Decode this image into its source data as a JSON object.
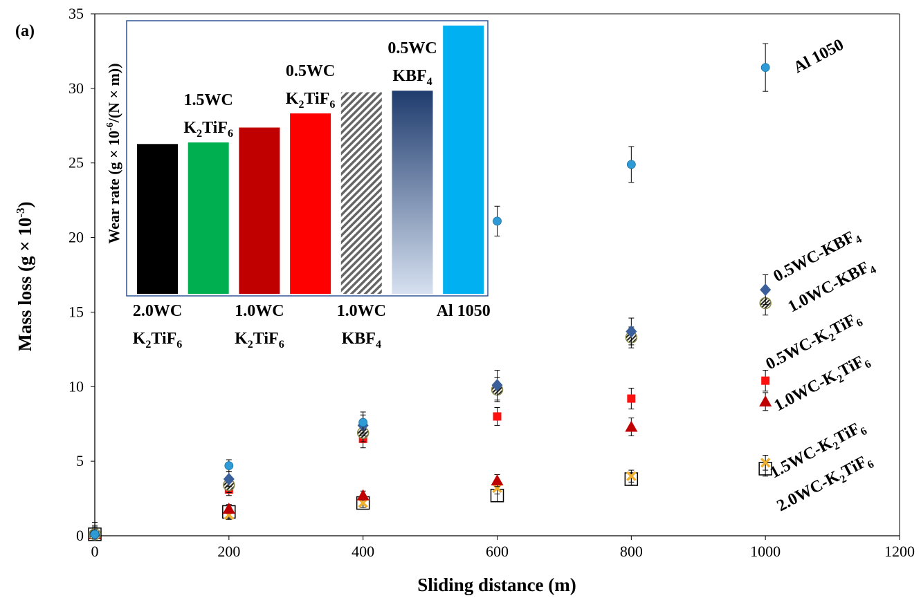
{
  "panel_label": "(a)",
  "chart_data": [
    {
      "type": "scatter",
      "xlabel": "Sliding distance (m)",
      "ylabel": "Mass loss (g × 10",
      "ylabel_sup": "-3",
      "ylabel_end": ")",
      "xlim": [
        0,
        1200
      ],
      "ylim": [
        0,
        35
      ],
      "xticks": [
        0,
        200,
        400,
        600,
        800,
        1000,
        1200
      ],
      "yticks": [
        0,
        5,
        10,
        15,
        20,
        25,
        30,
        35
      ],
      "grid": false,
      "series": [
        {
          "name": "Al 1050",
          "marker": "circle",
          "color": "#2e9bd6",
          "x": [
            0,
            200,
            400,
            600,
            800,
            1000
          ],
          "y": [
            0.1,
            4.7,
            7.6,
            21.1,
            24.9,
            31.4
          ],
          "err": [
            0.8,
            0.4,
            0.7,
            1.0,
            1.2,
            1.6
          ]
        },
        {
          "name": "0.5WC-KBF",
          "name_sub": "4",
          "marker": "diamond",
          "color": "#3a5f9a",
          "x": [
            0,
            200,
            400,
            600,
            800,
            1000
          ],
          "y": [
            0.1,
            3.8,
            7.4,
            10.1,
            13.7,
            16.5
          ],
          "err": [
            0.6,
            0.5,
            0.7,
            1.0,
            0.9,
            1.0
          ]
        },
        {
          "name": "1.0WC-KBF",
          "name_sub": "4",
          "marker": "hatched-circle",
          "color": "#555555",
          "x": [
            0,
            200,
            400,
            600,
            800,
            1000
          ],
          "y": [
            0.1,
            3.4,
            6.9,
            9.8,
            13.3,
            15.6
          ],
          "err": [
            0.5,
            0.5,
            0.6,
            0.8,
            0.7,
            0.8
          ]
        },
        {
          "name": "0.5WC-K",
          "name_sub": "2",
          "name_mid": "TiF",
          "name_sub2": "6",
          "marker": "square",
          "color": "#ff1010",
          "x": [
            0,
            200,
            400,
            600,
            800,
            1000
          ],
          "y": [
            0.1,
            3.1,
            6.5,
            8.0,
            9.2,
            10.4
          ],
          "err": [
            0.4,
            0.4,
            0.6,
            0.6,
            0.7,
            0.7
          ]
        },
        {
          "name": "1.0WC-K",
          "name_sub": "2",
          "name_mid": "TiF",
          "name_sub2": "6",
          "marker": "triangle",
          "color": "#c00000",
          "x": [
            0,
            200,
            400,
            600,
            800,
            1000
          ],
          "y": [
            0.1,
            1.8,
            2.7,
            3.7,
            7.3,
            9.0
          ],
          "err": [
            0.3,
            0.3,
            0.3,
            0.4,
            0.6,
            0.6
          ]
        },
        {
          "name": "1.5WC-K",
          "name_sub": "2",
          "name_mid": "TiF",
          "name_sub2": "6",
          "marker": "x",
          "color": "#f0b030",
          "x": [
            0,
            200,
            400,
            600,
            800,
            1000
          ],
          "y": [
            0.1,
            1.4,
            2.2,
            3.2,
            4.0,
            4.9
          ],
          "err": [
            0.3,
            0.3,
            0.3,
            0.4,
            0.4,
            0.5
          ]
        },
        {
          "name": "2.0WC-K",
          "name_sub": "2",
          "name_mid": "TiF",
          "name_sub2": "6",
          "marker": "open-square",
          "color": "#000000",
          "x": [
            0,
            200,
            400,
            600,
            800,
            1000
          ],
          "y": [
            0.1,
            1.6,
            2.2,
            2.7,
            3.8,
            4.5
          ],
          "err": [
            0.3,
            0.3,
            0.3,
            0.4,
            0.4,
            0.5
          ]
        }
      ]
    },
    {
      "type": "bar",
      "ylabel": "Wear rate (g × 10",
      "ylabel_sup": "-6",
      "ylabel_end": "/(N × m))",
      "bars": [
        {
          "label_top": "2.0WC",
          "label_bot": "K",
          "bot_sub": "2",
          "bot_mid": "TiF",
          "bot_sub2": "6",
          "position": "below",
          "value": 19.1,
          "fill": "#000000"
        },
        {
          "label_top": "1.5WC",
          "label_bot": "K",
          "bot_sub": "2",
          "bot_mid": "TiF",
          "bot_sub2": "6",
          "position": "above",
          "value": 19.3,
          "fill": "#00b050"
        },
        {
          "label_top": "1.0WC",
          "label_bot": "K",
          "bot_sub": "2",
          "bot_mid": "TiF",
          "bot_sub2": "6",
          "position": "below",
          "value": 21.2,
          "fill": "#c00000"
        },
        {
          "label_top": "0.5WC",
          "label_bot": "K",
          "bot_sub": "2",
          "bot_mid": "TiF",
          "bot_sub2": "6",
          "position": "above",
          "value": 23.0,
          "fill": "#ff0000"
        },
        {
          "label_top": "1.0WC",
          "label_bot": "KBF",
          "bot_sub": "4",
          "bot_mid": "",
          "bot_sub2": "",
          "position": "below",
          "value": 25.7,
          "fill": "hatch"
        },
        {
          "label_top": "0.5WC",
          "label_bot": "KBF",
          "bot_sub": "4",
          "bot_mid": "",
          "bot_sub2": "",
          "position": "above",
          "value": 25.9,
          "fill": "gradient-blue"
        },
        {
          "label_top": "Al 1050",
          "label_bot": "",
          "bot_sub": "",
          "bot_mid": "",
          "bot_sub2": "",
          "position": "below",
          "value": 34.2,
          "fill": "#00b0f0"
        }
      ]
    }
  ]
}
